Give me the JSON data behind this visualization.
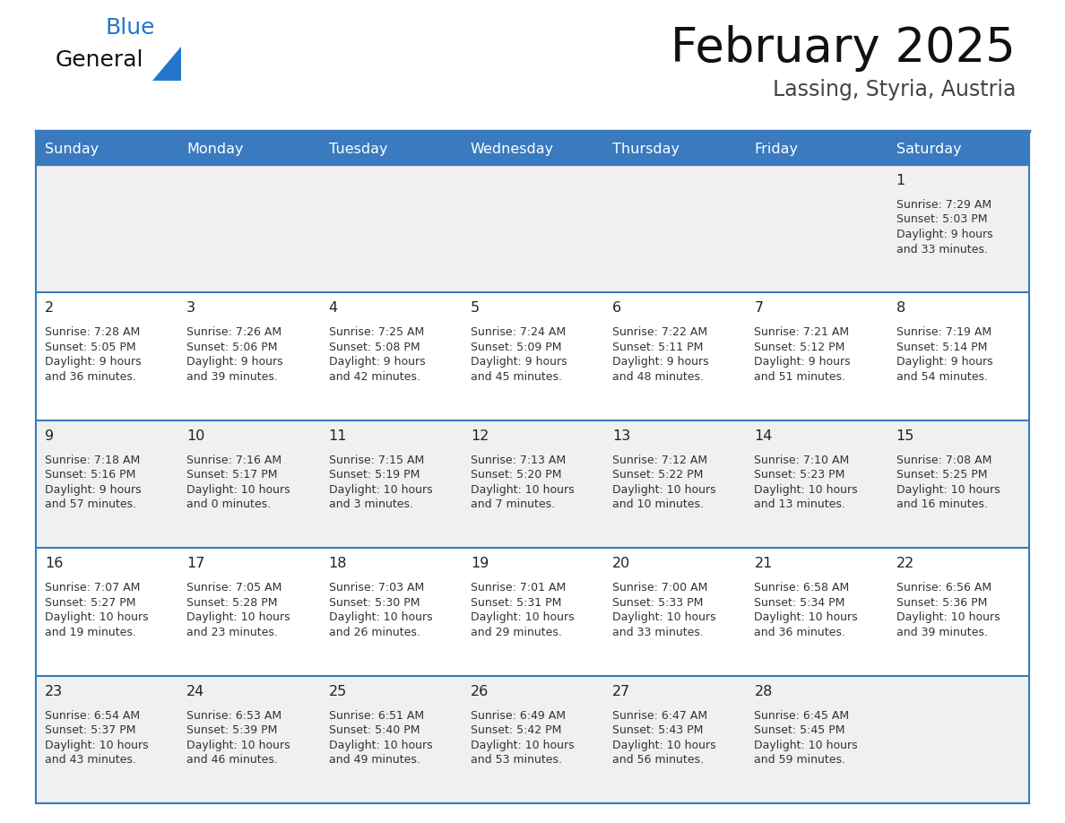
{
  "title": "February 2025",
  "subtitle": "Lassing, Styria, Austria",
  "header_bg": "#3a7abf",
  "header_text_color": "#ffffff",
  "days_of_week": [
    "Sunday",
    "Monday",
    "Tuesday",
    "Wednesday",
    "Thursday",
    "Friday",
    "Saturday"
  ],
  "row_bg_odd": "#f0f0f0",
  "row_bg_even": "#ffffff",
  "cell_border_color": "#3a7abf",
  "day_number_color": "#222222",
  "info_text_color": "#333333",
  "calendar": [
    [
      null,
      null,
      null,
      null,
      null,
      null,
      {
        "day": "1",
        "sunrise": "7:29 AM",
        "sunset": "5:03 PM",
        "daylight1": "9 hours",
        "daylight2": "and 33 minutes."
      }
    ],
    [
      {
        "day": "2",
        "sunrise": "7:28 AM",
        "sunset": "5:05 PM",
        "daylight1": "9 hours",
        "daylight2": "and 36 minutes."
      },
      {
        "day": "3",
        "sunrise": "7:26 AM",
        "sunset": "5:06 PM",
        "daylight1": "9 hours",
        "daylight2": "and 39 minutes."
      },
      {
        "day": "4",
        "sunrise": "7:25 AM",
        "sunset": "5:08 PM",
        "daylight1": "9 hours",
        "daylight2": "and 42 minutes."
      },
      {
        "day": "5",
        "sunrise": "7:24 AM",
        "sunset": "5:09 PM",
        "daylight1": "9 hours",
        "daylight2": "and 45 minutes."
      },
      {
        "day": "6",
        "sunrise": "7:22 AM",
        "sunset": "5:11 PM",
        "daylight1": "9 hours",
        "daylight2": "and 48 minutes."
      },
      {
        "day": "7",
        "sunrise": "7:21 AM",
        "sunset": "5:12 PM",
        "daylight1": "9 hours",
        "daylight2": "and 51 minutes."
      },
      {
        "day": "8",
        "sunrise": "7:19 AM",
        "sunset": "5:14 PM",
        "daylight1": "9 hours",
        "daylight2": "and 54 minutes."
      }
    ],
    [
      {
        "day": "9",
        "sunrise": "7:18 AM",
        "sunset": "5:16 PM",
        "daylight1": "9 hours",
        "daylight2": "and 57 minutes."
      },
      {
        "day": "10",
        "sunrise": "7:16 AM",
        "sunset": "5:17 PM",
        "daylight1": "10 hours",
        "daylight2": "and 0 minutes."
      },
      {
        "day": "11",
        "sunrise": "7:15 AM",
        "sunset": "5:19 PM",
        "daylight1": "10 hours",
        "daylight2": "and 3 minutes."
      },
      {
        "day": "12",
        "sunrise": "7:13 AM",
        "sunset": "5:20 PM",
        "daylight1": "10 hours",
        "daylight2": "and 7 minutes."
      },
      {
        "day": "13",
        "sunrise": "7:12 AM",
        "sunset": "5:22 PM",
        "daylight1": "10 hours",
        "daylight2": "and 10 minutes."
      },
      {
        "day": "14",
        "sunrise": "7:10 AM",
        "sunset": "5:23 PM",
        "daylight1": "10 hours",
        "daylight2": "and 13 minutes."
      },
      {
        "day": "15",
        "sunrise": "7:08 AM",
        "sunset": "5:25 PM",
        "daylight1": "10 hours",
        "daylight2": "and 16 minutes."
      }
    ],
    [
      {
        "day": "16",
        "sunrise": "7:07 AM",
        "sunset": "5:27 PM",
        "daylight1": "10 hours",
        "daylight2": "and 19 minutes."
      },
      {
        "day": "17",
        "sunrise": "7:05 AM",
        "sunset": "5:28 PM",
        "daylight1": "10 hours",
        "daylight2": "and 23 minutes."
      },
      {
        "day": "18",
        "sunrise": "7:03 AM",
        "sunset": "5:30 PM",
        "daylight1": "10 hours",
        "daylight2": "and 26 minutes."
      },
      {
        "day": "19",
        "sunrise": "7:01 AM",
        "sunset": "5:31 PM",
        "daylight1": "10 hours",
        "daylight2": "and 29 minutes."
      },
      {
        "day": "20",
        "sunrise": "7:00 AM",
        "sunset": "5:33 PM",
        "daylight1": "10 hours",
        "daylight2": "and 33 minutes."
      },
      {
        "day": "21",
        "sunrise": "6:58 AM",
        "sunset": "5:34 PM",
        "daylight1": "10 hours",
        "daylight2": "and 36 minutes."
      },
      {
        "day": "22",
        "sunrise": "6:56 AM",
        "sunset": "5:36 PM",
        "daylight1": "10 hours",
        "daylight2": "and 39 minutes."
      }
    ],
    [
      {
        "day": "23",
        "sunrise": "6:54 AM",
        "sunset": "5:37 PM",
        "daylight1": "10 hours",
        "daylight2": "and 43 minutes."
      },
      {
        "day": "24",
        "sunrise": "6:53 AM",
        "sunset": "5:39 PM",
        "daylight1": "10 hours",
        "daylight2": "and 46 minutes."
      },
      {
        "day": "25",
        "sunrise": "6:51 AM",
        "sunset": "5:40 PM",
        "daylight1": "10 hours",
        "daylight2": "and 49 minutes."
      },
      {
        "day": "26",
        "sunrise": "6:49 AM",
        "sunset": "5:42 PM",
        "daylight1": "10 hours",
        "daylight2": "and 53 minutes."
      },
      {
        "day": "27",
        "sunrise": "6:47 AM",
        "sunset": "5:43 PM",
        "daylight1": "10 hours",
        "daylight2": "and 56 minutes."
      },
      {
        "day": "28",
        "sunrise": "6:45 AM",
        "sunset": "5:45 PM",
        "daylight1": "10 hours",
        "daylight2": "and 59 minutes."
      },
      null
    ]
  ],
  "logo_color_general": "#111111",
  "logo_color_blue": "#2277cc"
}
